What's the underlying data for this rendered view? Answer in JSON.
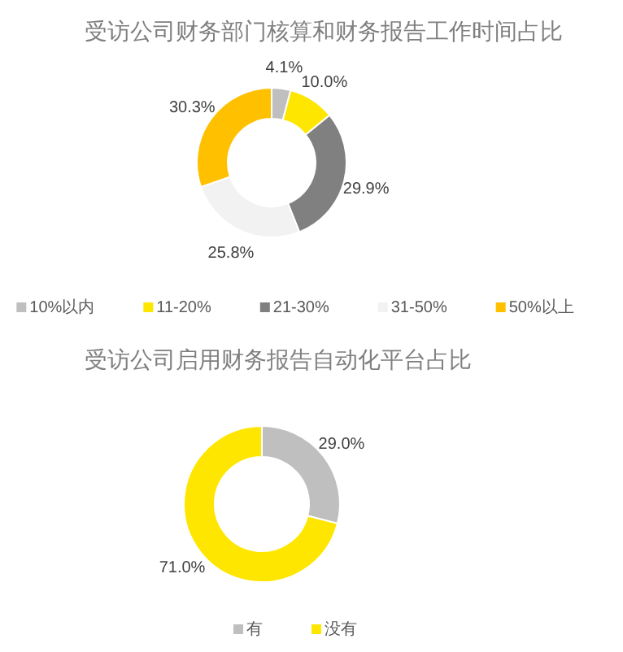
{
  "chart_data": [
    {
      "type": "donut",
      "title": "受访公司财务部门核算和财务报告工作时间占比",
      "categories": [
        "10%以内",
        "11-20%",
        "21-30%",
        "31-50%",
        "50%以上"
      ],
      "values": [
        4.1,
        10.0,
        29.9,
        25.8,
        30.3
      ],
      "colors": [
        "#bfbfbf",
        "#ffe600",
        "#808080",
        "#f2f2f2",
        "#ffc000"
      ],
      "value_labels": [
        "4.1%",
        "10.0%",
        "29.9%",
        "25.8%",
        "30.3%"
      ],
      "legend": "bottom"
    },
    {
      "type": "donut",
      "title": "受访公司启用财务报告自动化平台占比",
      "categories": [
        "有",
        "没有"
      ],
      "values": [
        29.0,
        71.0
      ],
      "colors": [
        "#bfbfbf",
        "#ffe600"
      ],
      "value_labels": [
        "29.0%",
        "71.0%"
      ],
      "legend": "bottom"
    }
  ]
}
